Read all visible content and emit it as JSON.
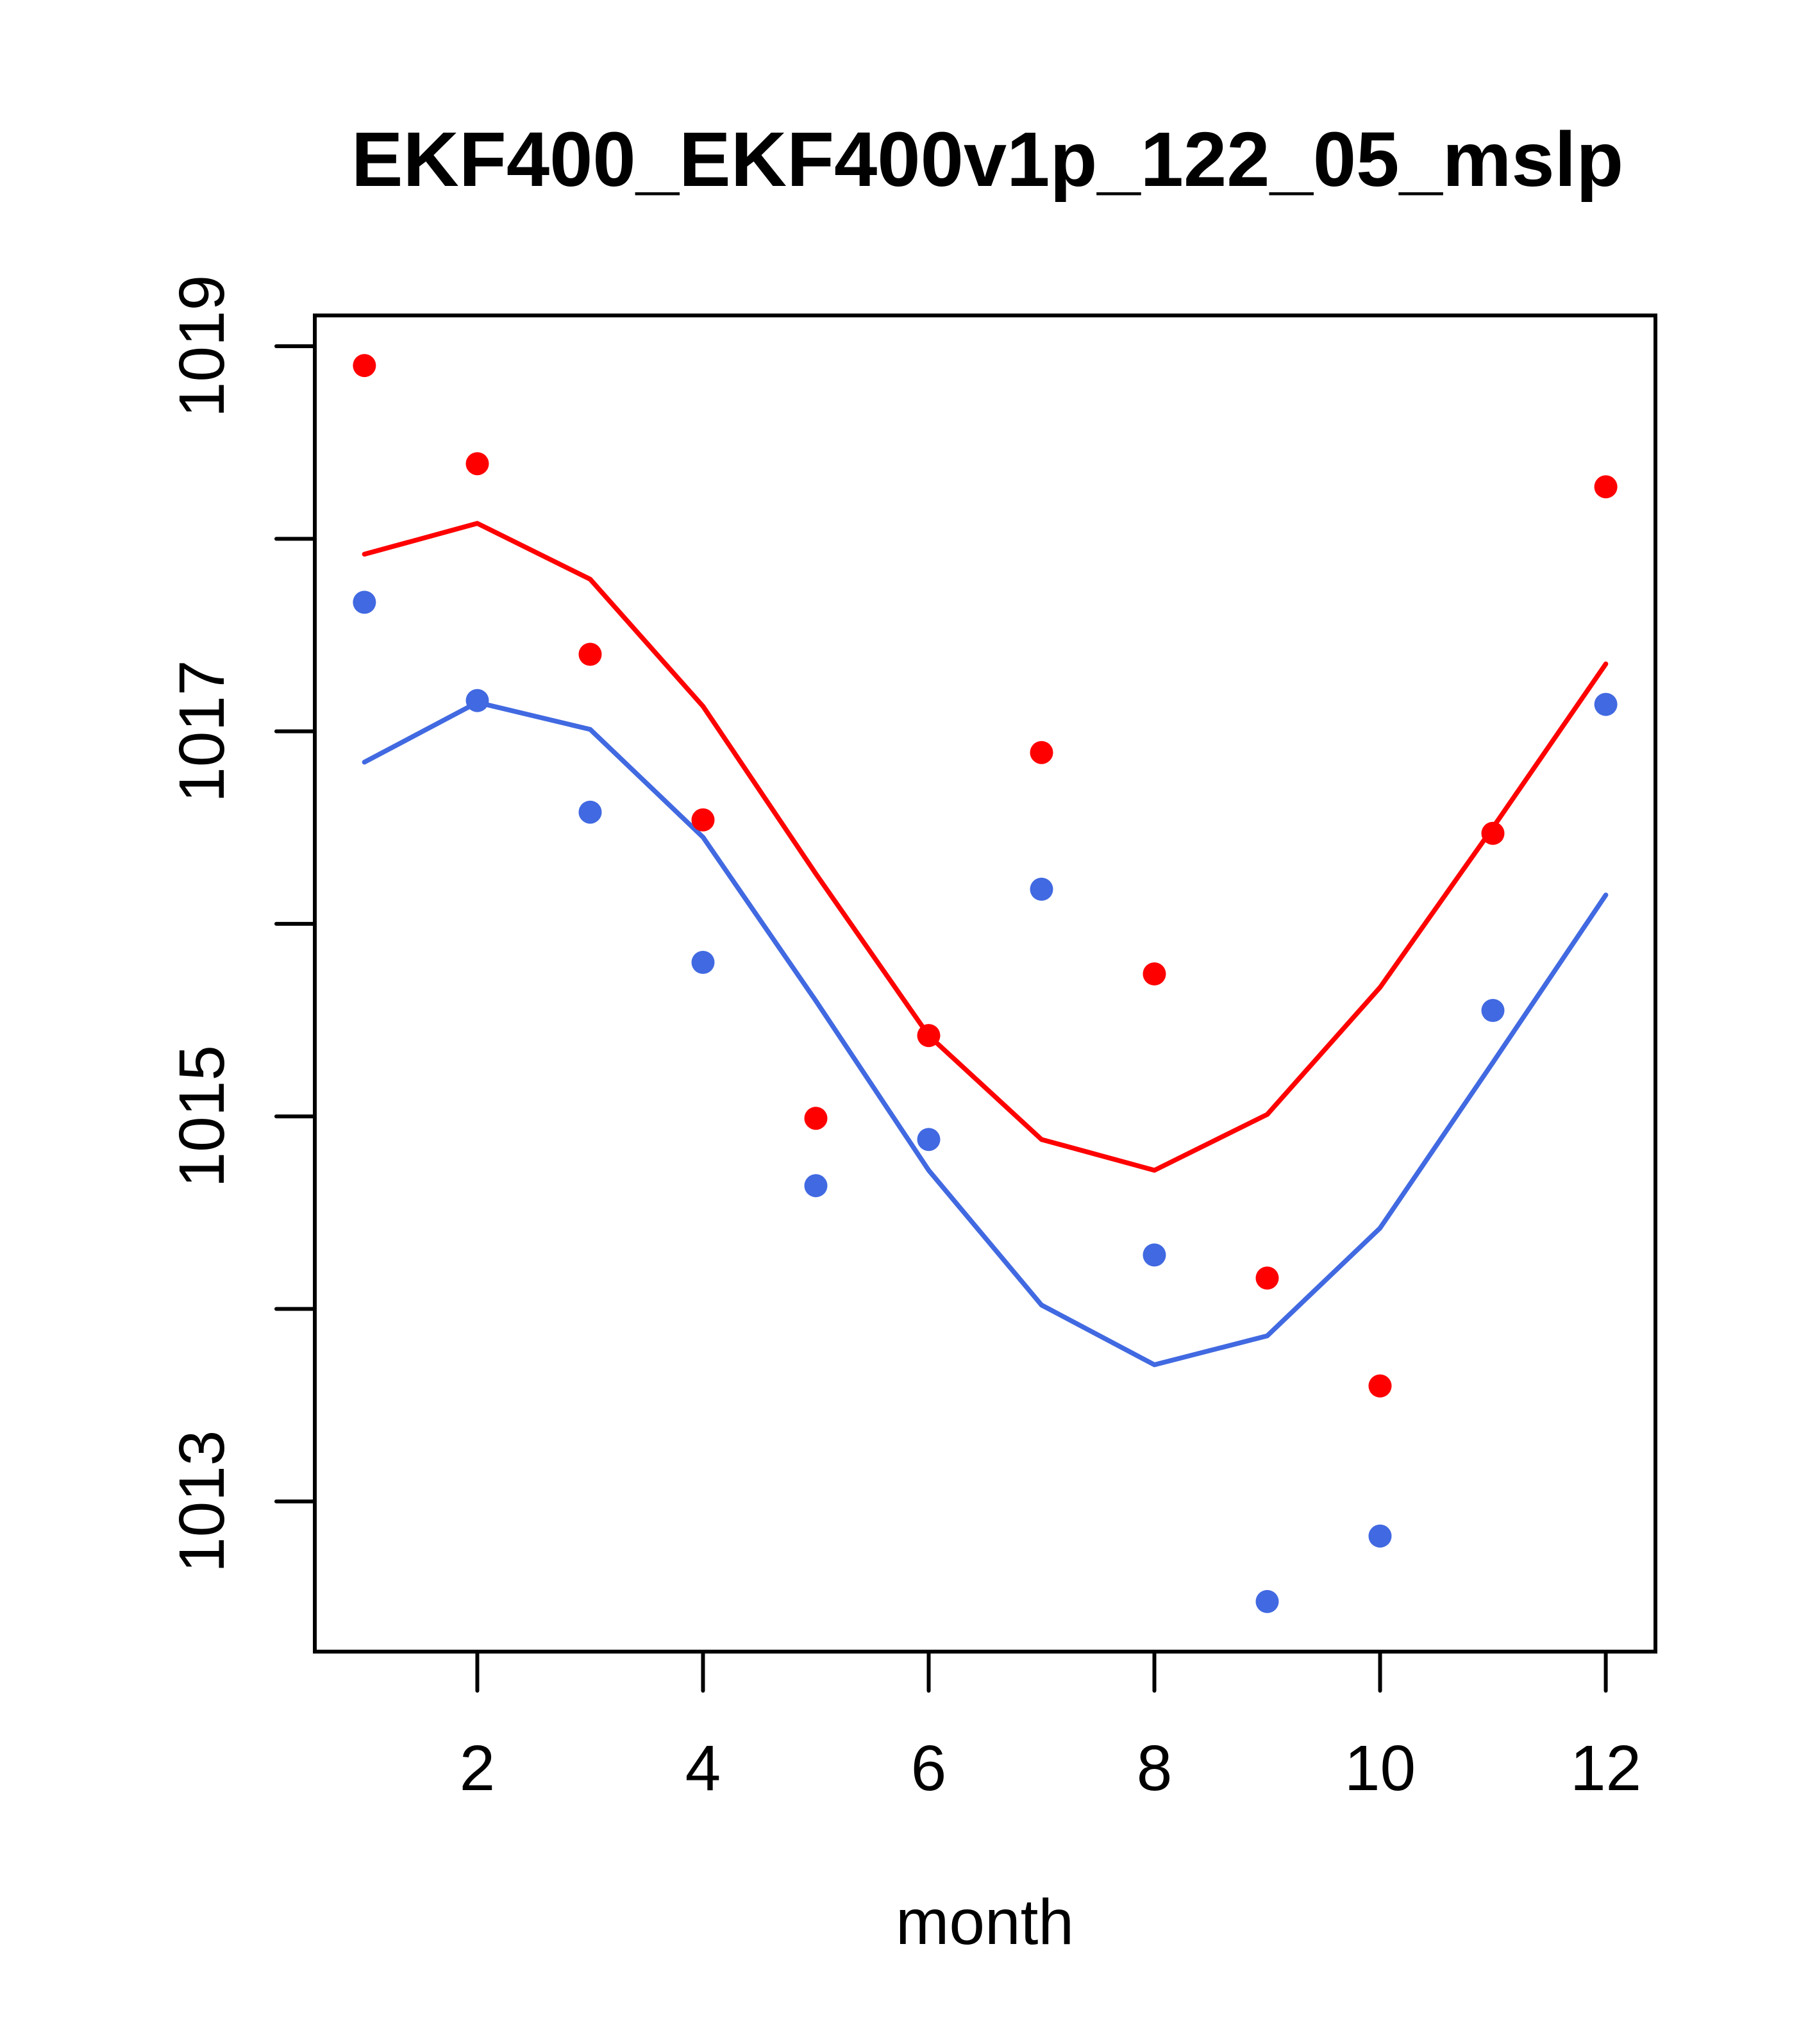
{
  "chart_data": {
    "type": "line",
    "title": "EKF400_EKF400v1p_122_05_mslp",
    "xlabel": "month",
    "ylabel": "",
    "xlim": [
      0.56,
      12.44
    ],
    "ylim": [
      1012.22,
      1019.16
    ],
    "grid": false,
    "legend": "none",
    "x": [
      1,
      2,
      3,
      4,
      5,
      6,
      7,
      8,
      9,
      10,
      11,
      12
    ],
    "x_ticks": [
      2,
      4,
      6,
      8,
      10,
      12
    ],
    "x_tick_labels": [
      "2",
      "4",
      "6",
      "8",
      "10",
      "12"
    ],
    "y_ticks": [
      1013,
      1014,
      1015,
      1016,
      1017,
      1018,
      1019
    ],
    "y_tick_labels": [
      {
        "value": 1013,
        "label": "1013"
      },
      {
        "value": 1015,
        "label": "1015"
      },
      {
        "value": 1017,
        "label": "1017"
      },
      {
        "value": 1019,
        "label": "1019"
      }
    ],
    "series": [
      {
        "name": "red-points",
        "kind": "scatter",
        "color": "#ff0000",
        "values": [
          1018.9,
          1018.39,
          1017.4,
          1016.54,
          1014.99,
          1015.42,
          1016.89,
          1015.74,
          1014.16,
          1013.6,
          1016.47,
          1018.27
        ]
      },
      {
        "name": "blue-points",
        "kind": "scatter",
        "color": "#4169e1",
        "values": [
          1017.67,
          1017.16,
          1016.58,
          1015.8,
          1014.64,
          1014.88,
          1016.18,
          1014.28,
          1012.48,
          1012.82,
          1015.55,
          1017.14
        ]
      },
      {
        "name": "red-line",
        "kind": "line",
        "color": "#ff0000",
        "values": [
          1017.92,
          1018.08,
          1017.79,
          1017.13,
          1016.26,
          1015.42,
          1014.88,
          1014.72,
          1015.01,
          1015.67,
          1016.5,
          1017.35
        ]
      },
      {
        "name": "blue-line",
        "kind": "line",
        "color": "#4169e1",
        "values": [
          1016.84,
          1017.15,
          1017.01,
          1016.45,
          1015.6,
          1014.72,
          1014.02,
          1013.71,
          1013.86,
          1014.42,
          1015.28,
          1016.15
        ]
      }
    ]
  }
}
